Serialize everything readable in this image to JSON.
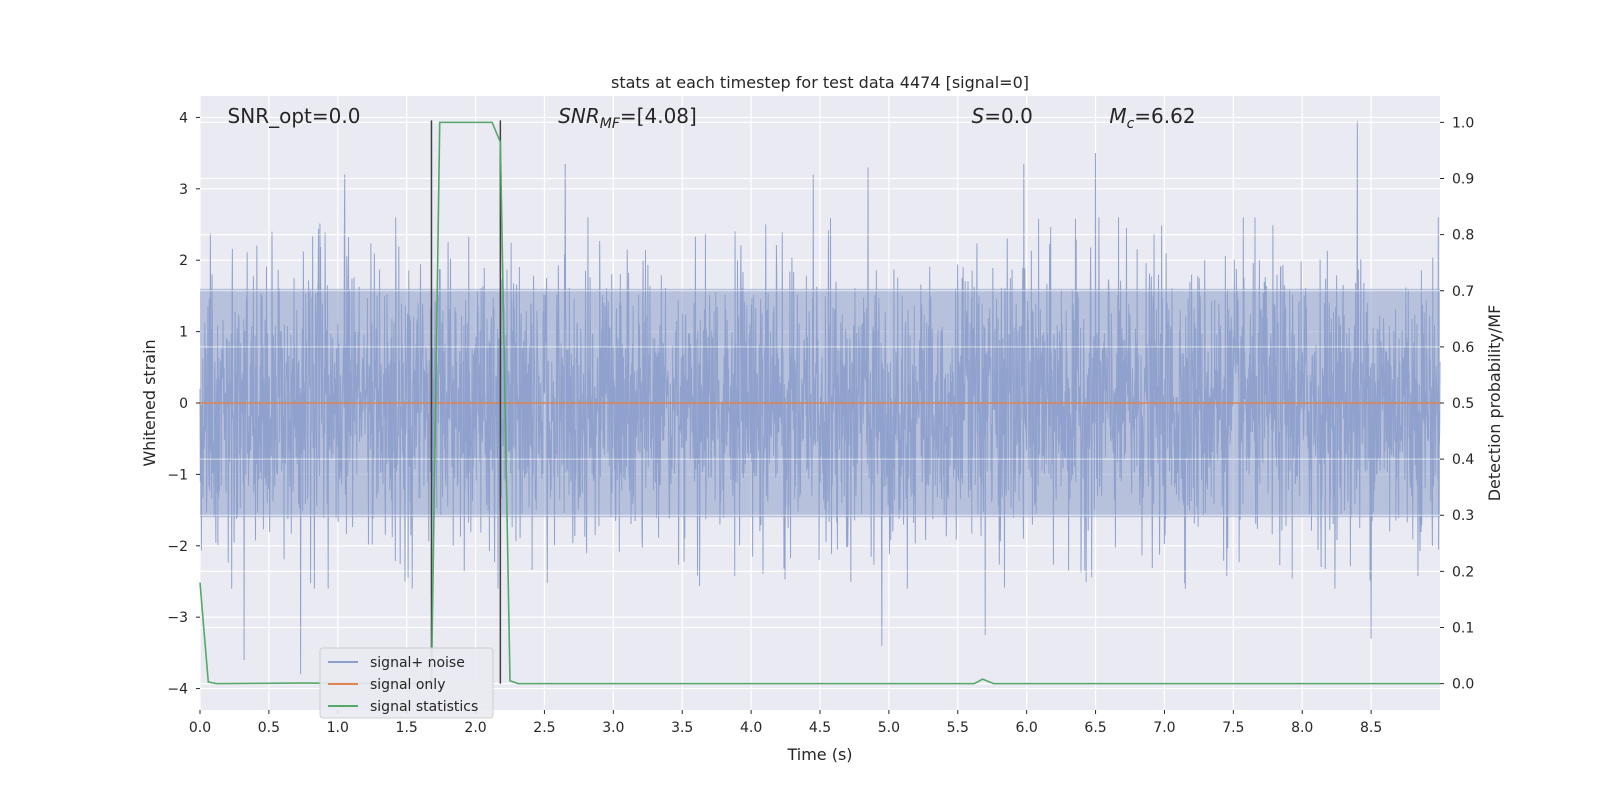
{
  "chart_data": {
    "type": "line",
    "title": "stats at each timestep for test data 4474 [signal=0]",
    "xlabel": "Time (s)",
    "ylabel": "Whitened strain",
    "ylabel_right": "Detection probability/MF",
    "xlim": [
      0.0,
      9.0
    ],
    "ylim": [
      -4.3,
      4.3
    ],
    "ylim_right": [
      -0.047,
      1.047
    ],
    "x_ticks": [
      0.0,
      0.5,
      1.0,
      1.5,
      2.0,
      2.5,
      3.0,
      3.5,
      4.0,
      4.5,
      5.0,
      5.5,
      6.0,
      6.5,
      7.0,
      7.5,
      8.0,
      8.5
    ],
    "x_tick_labels": [
      "0.0",
      "0.5",
      "1.0",
      "1.5",
      "2.0",
      "2.5",
      "3.0",
      "3.5",
      "4.0",
      "4.5",
      "5.0",
      "5.5",
      "6.0",
      "6.5",
      "7.0",
      "7.5",
      "8.0",
      "8.5"
    ],
    "y_ticks": [
      -4,
      -3,
      -2,
      -1,
      0,
      1,
      2,
      3,
      4
    ],
    "y_tick_labels": [
      "−4",
      "−3",
      "−2",
      "−1",
      "0",
      "1",
      "2",
      "3",
      "4"
    ],
    "y_right_ticks": [
      0.0,
      0.1,
      0.2,
      0.3,
      0.4,
      0.5,
      0.6,
      0.7,
      0.8,
      0.9,
      1.0
    ],
    "y_right_tick_labels": [
      "0.0",
      "0.1",
      "0.2",
      "0.3",
      "0.4",
      "0.5",
      "0.6",
      "0.7",
      "0.8",
      "0.9",
      "1.0"
    ],
    "grid": true,
    "legend_position": "lower-left",
    "series": [
      {
        "name": "signal+ noise",
        "axis": "left",
        "color": "#8c9fca",
        "description_values": {
          "envelope_typical": [
            -1.6,
            1.6
          ],
          "peaks_x": [
            0.32,
            0.73,
            1.05,
            2.65,
            4.45,
            4.85,
            4.95,
            5.7,
            5.98,
            6.5,
            8.4,
            8.5
          ],
          "peaks_y": [
            -3.6,
            -3.8,
            3.2,
            3.35,
            3.2,
            3.3,
            -3.4,
            -3.25,
            3.35,
            3.5,
            3.95,
            -3.3
          ]
        }
      },
      {
        "name": "signal only",
        "axis": "left",
        "color": "#dd8452",
        "x": [
          0.0,
          9.0
        ],
        "y": [
          0.0,
          0.0
        ]
      },
      {
        "name": "signal statistics",
        "axis": "right",
        "color": "#55a868",
        "x": [
          0.0,
          0.06,
          0.12,
          0.73,
          1.68,
          1.74,
          2.12,
          2.18,
          2.25,
          2.31,
          5.62,
          5.68,
          5.76,
          9.0
        ],
        "y": [
          0.18,
          0.003,
          0.0,
          0.001,
          0.0,
          1.0,
          1.0,
          0.965,
          0.005,
          0.0,
          0.0,
          0.008,
          0.0,
          0.0
        ]
      }
    ],
    "vlines": {
      "color": "#404040",
      "x": [
        1.68,
        2.18
      ]
    },
    "annotations": [
      {
        "text": "SNR_opt=0.0",
        "x": 0.2
      },
      {
        "text": "SNR",
        "sub": "MF",
        "suffix": "=[4.08]",
        "x": 2.6,
        "italic": true
      },
      {
        "text": "S",
        "suffix": "=0.0",
        "x": 5.6,
        "italic": true
      },
      {
        "text": "M",
        "sub": "c",
        "suffix": "=6.62",
        "x": 6.6,
        "italic": true
      }
    ]
  }
}
